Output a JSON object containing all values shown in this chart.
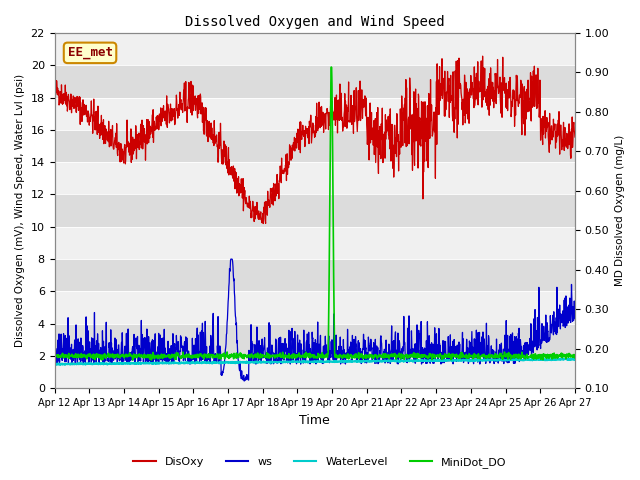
{
  "title": "Dissolved Oxygen and Wind Speed",
  "xlabel": "Time",
  "ylabel_left": "Dissolved Oxygen (mV), Wind Speed, Water Lvl (psi)",
  "ylabel_right": "MD Dissolved Oxygen (mg/L)",
  "annotation": "EE_met",
  "ylim_left": [
    0,
    22
  ],
  "ylim_right": [
    0.1,
    1.0
  ],
  "yticks_left": [
    0,
    2,
    4,
    6,
    8,
    10,
    12,
    14,
    16,
    18,
    20,
    22
  ],
  "yticks_right": [
    0.1,
    0.2,
    0.3,
    0.4,
    0.5,
    0.6,
    0.7,
    0.8,
    0.9,
    1.0
  ],
  "xtick_labels": [
    "Apr 12",
    "Apr 13",
    "Apr 14",
    "Apr 15",
    "Apr 16",
    "Apr 17",
    "Apr 18",
    "Apr 19",
    "Apr 20",
    "Apr 21",
    "Apr 22",
    "Apr 23",
    "Apr 24",
    "Apr 25",
    "Apr 26",
    "Apr 27"
  ],
  "colors": {
    "DisOxy": "#cc0000",
    "ws": "#0000cc",
    "WaterLevel": "#00cccc",
    "MiniDot_DO": "#00cc00"
  },
  "background_color": "#e8e8e8",
  "band_color_light": "#f0f0f0",
  "band_color_dark": "#dcdcdc",
  "annotation_bg": "#ffffcc",
  "annotation_border": "#cc8800"
}
